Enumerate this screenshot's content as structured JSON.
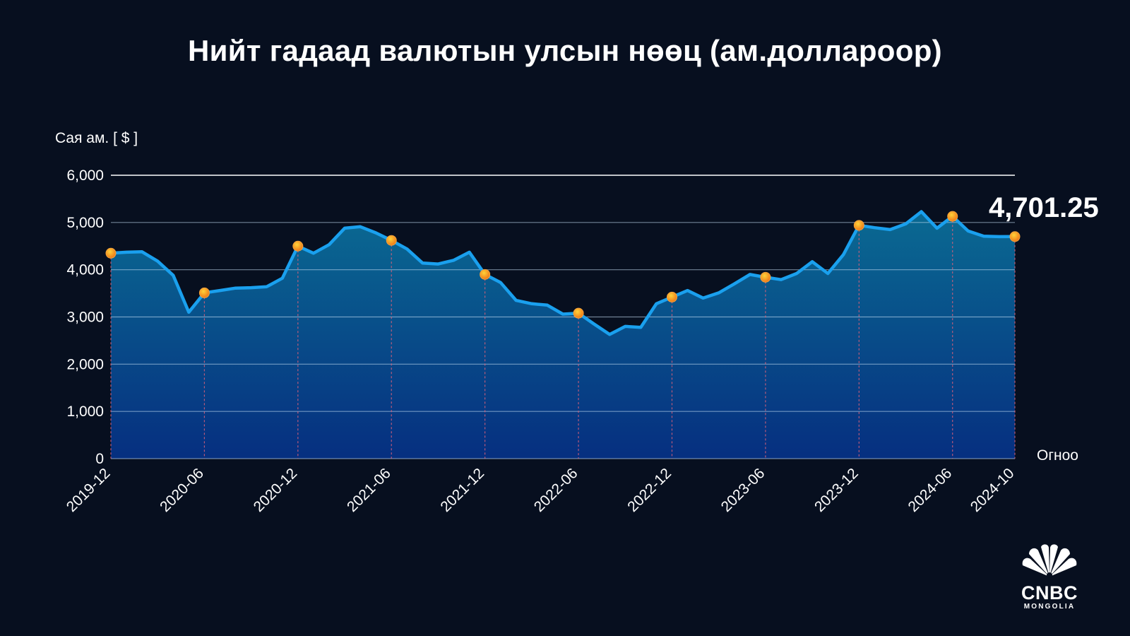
{
  "brand": {
    "logo_word": "CNBC",
    "logo_sub": "MONGOLIA",
    "colors": {
      "background": "#070f1f",
      "line": "#1aa0ee",
      "marker": "#f28c1c",
      "area_top": "#0a5f88",
      "area_bottom": "#063083"
    }
  },
  "chart_data": {
    "type": "area",
    "title": "Нийт гадаад валютын улсын нөөц (ам.доллароор)",
    "ylabel": "Сая ам. [ $ ]",
    "xlabel": "Огноо",
    "ylim": [
      0,
      6000
    ],
    "yticks": [
      "0",
      "1,000",
      "2,000",
      "3,000",
      "4,000",
      "5,000",
      "6,000"
    ],
    "ytick_values": [
      0,
      1000,
      2000,
      3000,
      4000,
      5000,
      6000
    ],
    "grid": true,
    "last_value_label": "4,701.25",
    "x": [
      "2019-12",
      "2020-01",
      "2020-02",
      "2020-03",
      "2020-04",
      "2020-05",
      "2020-06",
      "2020-07",
      "2020-08",
      "2020-09",
      "2020-10",
      "2020-11",
      "2020-12",
      "2021-01",
      "2021-02",
      "2021-03",
      "2021-04",
      "2021-05",
      "2021-06",
      "2021-07",
      "2021-08",
      "2021-09",
      "2021-10",
      "2021-11",
      "2021-12",
      "2022-01",
      "2022-02",
      "2022-03",
      "2022-04",
      "2022-05",
      "2022-06",
      "2022-07",
      "2022-08",
      "2022-09",
      "2022-10",
      "2022-11",
      "2022-12",
      "2023-01",
      "2023-02",
      "2023-03",
      "2023-04",
      "2023-05",
      "2023-06",
      "2023-07",
      "2023-08",
      "2023-09",
      "2023-10",
      "2023-11",
      "2023-12",
      "2024-01",
      "2024-02",
      "2024-03",
      "2024-04",
      "2024-05",
      "2024-06",
      "2024-07",
      "2024-08",
      "2024-09",
      "2024-10"
    ],
    "values": [
      4350,
      4370,
      4380,
      4180,
      3880,
      3100,
      3510,
      3560,
      3610,
      3620,
      3640,
      3820,
      4500,
      4350,
      4530,
      4880,
      4910,
      4780,
      4620,
      4440,
      4140,
      4120,
      4200,
      4370,
      3900,
      3730,
      3350,
      3280,
      3250,
      3060,
      3080,
      2850,
      2630,
      2800,
      2780,
      3280,
      3420,
      3560,
      3400,
      3510,
      3700,
      3900,
      3840,
      3790,
      3920,
      4170,
      3920,
      4320,
      4940,
      4890,
      4850,
      4970,
      5230,
      4880,
      5130,
      4820,
      4710,
      4700,
      4701.25
    ],
    "highlighted_points": [
      "2019-12",
      "2020-06",
      "2020-12",
      "2021-06",
      "2021-12",
      "2022-06",
      "2022-12",
      "2023-06",
      "2023-12",
      "2024-06",
      "2024-10"
    ],
    "xtick_labels": [
      "2019-12",
      "2020-06",
      "2020-12",
      "2021-06",
      "2021-12",
      "2022-06",
      "2022-12",
      "2023-06",
      "2023-12",
      "2024-06",
      "2024-10"
    ]
  }
}
